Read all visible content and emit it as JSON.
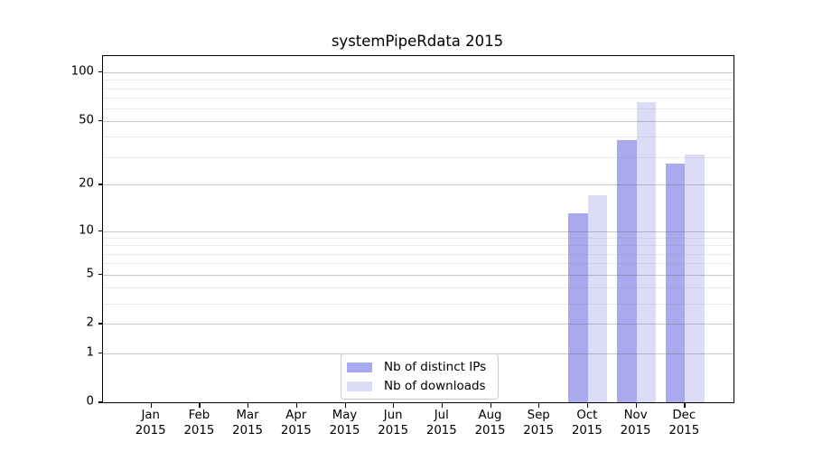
{
  "title": "systemPipeRdata 2015",
  "legend": {
    "items": [
      {
        "label": "Nb of distinct IPs",
        "color": "#a9a9ef"
      },
      {
        "label": "Nb of downloads",
        "color": "#dcdcf7"
      }
    ]
  },
  "axes": {
    "y_tick_labels": [
      "100",
      "50",
      "20",
      "10",
      "5",
      "2",
      "1",
      "0"
    ],
    "x_tick_month_labels": [
      "Jan",
      "Feb",
      "Mar",
      "Apr",
      "May",
      "Jun",
      "Jul",
      "Aug",
      "Sep",
      "Oct",
      "Nov",
      "Dec"
    ],
    "x_tick_year_label": "2015"
  },
  "chart_data": {
    "type": "bar",
    "title": "systemPipeRdata 2015",
    "categories": [
      "Jan 2015",
      "Feb 2015",
      "Mar 2015",
      "Apr 2015",
      "May 2015",
      "Jun 2015",
      "Jul 2015",
      "Aug 2015",
      "Sep 2015",
      "Oct 2015",
      "Nov 2015",
      "Dec 2015"
    ],
    "series": [
      {
        "name": "Nb of distinct IPs",
        "color": "#a9a9ef",
        "values": [
          0,
          0,
          0,
          0,
          0,
          0,
          0,
          0,
          0,
          13,
          38,
          27
        ]
      },
      {
        "name": "Nb of downloads",
        "color": "#dcdcf7",
        "values": [
          0,
          0,
          0,
          0,
          0,
          0,
          0,
          0,
          0,
          17,
          65,
          31
        ]
      }
    ],
    "xlabel": "",
    "ylabel": "",
    "y_scale": "log10(1+value)",
    "y_major_ticks": [
      0,
      1,
      2,
      5,
      10,
      20,
      50,
      100
    ],
    "y_minor_gridlines": [
      3,
      4,
      6,
      7,
      8,
      9,
      30,
      40,
      60,
      70,
      80,
      90
    ],
    "ylim": [
      0,
      127
    ],
    "grid": "horizontal, drawn over bars",
    "legend_position": "lower center"
  }
}
